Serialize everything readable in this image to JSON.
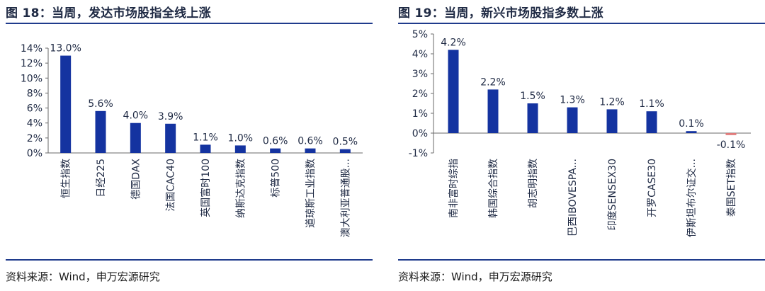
{
  "colors": {
    "bar": "#1433a0",
    "bar_negative": "#e07a7a",
    "axis": "#6a6a6a",
    "accent": "#1f3b8c"
  },
  "charts": [
    {
      "title": "图 18：当周，发达市场股指全线上涨",
      "source": "资料来源：Wind，申万宏源研究"
    },
    {
      "title": "图 19：当周，新兴市场股指多数上涨",
      "source": "资料来源：Wind，申万宏源研究"
    }
  ],
  "chart_data": [
    {
      "type": "bar",
      "title": "图 18：当周，发达市场股指全线上涨",
      "categories": [
        "恒生指数",
        "日经225",
        "德国DAX",
        "法国CAC40",
        "英国富时100",
        "纳斯达克指数",
        "标普500",
        "道琼斯工业指数",
        "澳大利亚普通股..."
      ],
      "values": [
        13.0,
        5.6,
        4.0,
        3.9,
        1.1,
        1.0,
        0.6,
        0.6,
        0.5
      ],
      "value_labels": [
        "13.0%",
        "5.6%",
        "4.0%",
        "3.9%",
        "1.1%",
        "1.0%",
        "0.6%",
        "0.6%",
        "0.5%"
      ],
      "yticks": [
        "14%",
        "12%",
        "10%",
        "8%",
        "6%",
        "4%",
        "2%",
        "0%"
      ],
      "ytick_values": [
        14,
        12,
        10,
        8,
        6,
        4,
        2,
        0
      ],
      "ylim": [
        0,
        14
      ],
      "grid": false,
      "legend": "none"
    },
    {
      "type": "bar",
      "title": "图 19：当周，新兴市场股指多数上涨",
      "categories": [
        "南非富时综指",
        "韩国综合指数",
        "胡志明指数",
        "巴西IBOVESPA...",
        "印度SENSEX30",
        "开罗CASE30",
        "伊斯坦布尔证交...",
        "泰国SET指数"
      ],
      "values": [
        4.2,
        2.2,
        1.5,
        1.3,
        1.2,
        1.1,
        0.1,
        -0.1
      ],
      "value_labels": [
        "4.2%",
        "2.2%",
        "1.5%",
        "1.3%",
        "1.2%",
        "1.1%",
        "0.1%",
        "-0.1%"
      ],
      "yticks": [
        "5%",
        "4%",
        "3%",
        "2%",
        "1%",
        "0%",
        "-1%"
      ],
      "ytick_values": [
        5,
        4,
        3,
        2,
        1,
        0,
        -1
      ],
      "ylim": [
        -1,
        5
      ],
      "grid": false,
      "legend": "none"
    }
  ]
}
